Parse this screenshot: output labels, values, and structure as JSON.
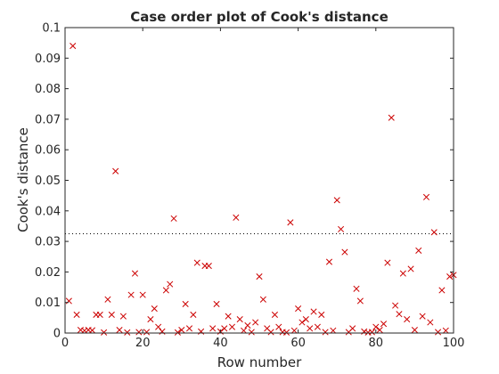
{
  "chart_data": {
    "type": "scatter",
    "title": "Case order plot of Cook's distance",
    "xlabel": "Row number",
    "ylabel": "Cook's distance",
    "xlim": [
      0,
      100
    ],
    "ylim": [
      0,
      0.1
    ],
    "xticks": [
      0,
      20,
      40,
      60,
      80,
      100
    ],
    "yticks": [
      0,
      0.01,
      0.02,
      0.03,
      0.04,
      0.05,
      0.06,
      0.07,
      0.08,
      0.09,
      0.1
    ],
    "ytick_labels": [
      "0",
      "0.01",
      "0.02",
      "0.03",
      "0.04",
      "0.05",
      "0.06",
      "0.07",
      "0.08",
      "0.09",
      "0.1"
    ],
    "grid": false,
    "marker": "x",
    "marker_color": "#cc0000",
    "threshold": {
      "y": 0.0325,
      "style": "dotted",
      "color": "#000000"
    },
    "series": [
      {
        "x": [
          1,
          2,
          3,
          4,
          5,
          6,
          7,
          8,
          9,
          10,
          11,
          12,
          13,
          14,
          15,
          16,
          17,
          18,
          19,
          20,
          21,
          22,
          23,
          24,
          25,
          26,
          27,
          28,
          29,
          30,
          31,
          32,
          33,
          34,
          35,
          36,
          37,
          38,
          39,
          40,
          41,
          42,
          43,
          44,
          45,
          46,
          47,
          48,
          49,
          50,
          51,
          52,
          53,
          54,
          55,
          56,
          57,
          58,
          59,
          60,
          61,
          62,
          63,
          64,
          65,
          66,
          67,
          68,
          69,
          70,
          71,
          72,
          73,
          74,
          75,
          76,
          77,
          78,
          79,
          80,
          81,
          82,
          83,
          84,
          85,
          86,
          87,
          88,
          89,
          90,
          91,
          92,
          93,
          94,
          95,
          96,
          97,
          98,
          99,
          100
        ],
        "y": [
          0.0105,
          0.094,
          0.006,
          0.001,
          0.0008,
          0.001,
          0.0009,
          0.006,
          0.006,
          0.0002,
          0.011,
          0.006,
          0.053,
          0.001,
          0.0055,
          0.0002,
          0.0125,
          0.0195,
          0.0003,
          0.0125,
          0.0003,
          0.0045,
          0.008,
          0.002,
          0.0005,
          0.014,
          0.016,
          0.0375,
          0.0002,
          0.001,
          0.0095,
          0.0015,
          0.006,
          0.023,
          0.0005,
          0.022,
          0.022,
          0.0015,
          0.0095,
          0.0005,
          0.0015,
          0.0055,
          0.002,
          0.0378,
          0.0045,
          0.0008,
          0.0025,
          0.0003,
          0.0035,
          0.0185,
          0.011,
          0.0015,
          0.0003,
          0.006,
          0.002,
          0.0003,
          0.0002,
          0.0362,
          0.0008,
          0.008,
          0.0035,
          0.0045,
          0.0015,
          0.007,
          0.002,
          0.006,
          0.0003,
          0.0233,
          0.0008,
          0.0435,
          0.034,
          0.0265,
          0.0003,
          0.0015,
          0.0145,
          0.0105,
          0.0005,
          0.0002,
          0.0003,
          0.002,
          0.001,
          0.003,
          0.023,
          0.0705,
          0.009,
          0.0062,
          0.0195,
          0.0045,
          0.021,
          0.001,
          0.027,
          0.0055,
          0.0445,
          0.0035,
          0.033,
          0.0003,
          0.014,
          0.0008,
          0.0185,
          0.019
        ]
      }
    ]
  }
}
